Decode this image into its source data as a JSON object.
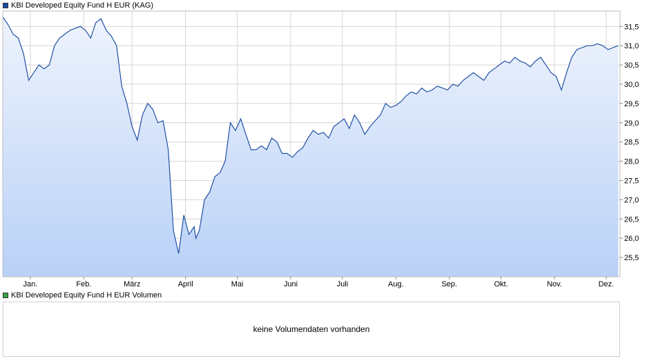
{
  "main_chart": {
    "legend": {
      "label": "KBI Developed Equity Fund H EUR (KAG)",
      "color": "#1f4fa3"
    }
  },
  "volume_chart": {
    "legend": {
      "label": "KBI Developed Equity Fund H EUR Volumen",
      "color": "#3aa34a"
    },
    "message": "keine Volumendaten vorhanden"
  },
  "colors": {
    "line": "#1f4fa3",
    "fill_top": "#eef3fd",
    "fill_bottom": "#b9d1f7",
    "grid": "#d4d4d4"
  },
  "chart_data": {
    "type": "area",
    "xlabel": "",
    "ylabel": "",
    "ylim": [
      25.0,
      31.9
    ],
    "y_ticks": [
      "25,5",
      "26,0",
      "26,5",
      "27,0",
      "27,5",
      "28,0",
      "28,5",
      "29,0",
      "29,5",
      "30,0",
      "30,5",
      "31,0",
      "31,5"
    ],
    "y_tick_values": [
      25.5,
      26.0,
      26.5,
      27.0,
      27.5,
      28.0,
      28.5,
      29.0,
      29.5,
      30.0,
      30.5,
      31.0,
      31.5
    ],
    "x_ticks": [
      "Jan.",
      "Feb.",
      "März",
      "April",
      "Mai",
      "Juni",
      "Juli",
      "Aug.",
      "Sep.",
      "Okt.",
      "Nov.",
      "Dez."
    ],
    "x_tick_days": [
      16,
      47,
      75,
      106,
      136,
      167,
      197,
      228,
      259,
      289,
      320,
      350
    ],
    "grid": true,
    "series": [
      {
        "name": "KBI Developed Equity Fund H EUR (KAG)",
        "x": [
          0,
          3,
          6,
          9,
          12,
          15,
          18,
          21,
          24,
          27,
          30,
          33,
          36,
          39,
          42,
          45,
          48,
          51,
          54,
          57,
          60,
          63,
          66,
          69,
          72,
          75,
          78,
          81,
          84,
          87,
          90,
          93,
          96,
          99,
          102,
          105,
          108,
          111,
          112,
          114,
          117,
          120,
          123,
          126,
          129,
          132,
          135,
          138,
          141,
          144,
          147,
          150,
          153,
          156,
          159,
          162,
          165,
          168,
          171,
          174,
          177,
          180,
          183,
          186,
          189,
          192,
          195,
          198,
          201,
          204,
          207,
          210,
          213,
          216,
          219,
          222,
          225,
          228,
          231,
          234,
          237,
          240,
          243,
          246,
          249,
          252,
          255,
          258,
          261,
          264,
          267,
          270,
          273,
          276,
          279,
          282,
          285,
          288,
          291,
          294,
          297,
          300,
          303,
          306,
          309,
          312,
          315,
          318,
          321,
          324,
          327,
          330,
          333,
          336,
          339,
          342,
          345,
          348,
          351,
          354,
          357
        ],
        "values": [
          31.75,
          31.55,
          31.3,
          31.2,
          30.8,
          30.1,
          30.3,
          30.5,
          30.4,
          30.5,
          31.0,
          31.2,
          31.3,
          31.4,
          31.45,
          31.5,
          31.4,
          31.2,
          31.6,
          31.7,
          31.4,
          31.25,
          31.0,
          29.95,
          29.5,
          28.9,
          28.55,
          29.2,
          29.5,
          29.35,
          29.0,
          29.05,
          28.3,
          26.2,
          25.6,
          26.6,
          26.1,
          26.3,
          26.0,
          26.2,
          27.0,
          27.2,
          27.6,
          27.7,
          28.0,
          29.0,
          28.8,
          29.1,
          28.7,
          28.3,
          28.3,
          28.4,
          28.3,
          28.6,
          28.5,
          28.2,
          28.2,
          28.1,
          28.25,
          28.35,
          28.6,
          28.8,
          28.7,
          28.75,
          28.6,
          28.9,
          29.0,
          29.1,
          28.85,
          29.2,
          29.0,
          28.7,
          28.9,
          29.05,
          29.2,
          29.5,
          29.4,
          29.45,
          29.55,
          29.7,
          29.8,
          29.75,
          29.9,
          29.8,
          29.85,
          29.95,
          29.9,
          29.85,
          30.0,
          29.95,
          30.1,
          30.2,
          30.3,
          30.2,
          30.1,
          30.3,
          30.4,
          30.5,
          30.6,
          30.55,
          30.7,
          30.6,
          30.55,
          30.45,
          30.6,
          30.7,
          30.5,
          30.3,
          30.2,
          29.85,
          30.3,
          30.7,
          30.9,
          30.95,
          31.0,
          31.0,
          31.05,
          31.0,
          30.9,
          30.95,
          31.0
        ]
      }
    ]
  }
}
